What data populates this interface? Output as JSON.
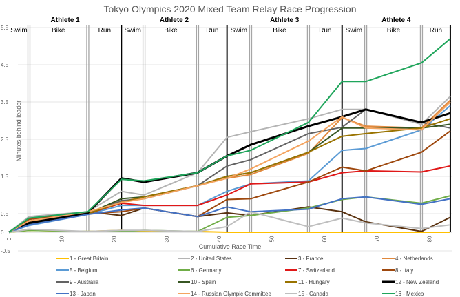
{
  "chart_data": {
    "type": "line",
    "title": "Tokyo Olympics 2020 Mixed Team Relay Race Progression",
    "xlabel": "Cumulative Race Time",
    "ylabel": "Minutes behind leader",
    "xlim": [
      0,
      85
    ],
    "ylim": [
      -0.5,
      5.5
    ],
    "xticks": [
      0,
      10,
      20,
      30,
      40,
      50,
      60,
      70,
      80
    ],
    "yticks": [
      -0.5,
      0,
      0.5,
      1.5,
      2.5,
      3.5,
      4.5,
      5.5
    ],
    "ytick_labels": [
      "-0.5",
      "0",
      "0.5",
      "1.5",
      "2.5",
      "3.5",
      "4.5",
      "5.5"
    ],
    "grid": true,
    "legend_position": "bottom",
    "x": [
      0,
      3.8,
      15.0,
      21.4,
      25.7,
      35.9,
      41.5,
      46.0,
      57.0,
      63.4,
      67.9,
      78.5,
      84.0
    ],
    "athletes": [
      {
        "label": "Athlete 1",
        "segments": [
          {
            "label": "Swim",
            "start": 0,
            "end": 3.8
          },
          {
            "label": "Bike",
            "start": 3.8,
            "end": 15.0
          },
          {
            "label": "Run",
            "start": 15.0,
            "end": 21.4
          }
        ]
      },
      {
        "label": "Athlete 2",
        "segments": [
          {
            "label": "Swim",
            "start": 21.4,
            "end": 25.7
          },
          {
            "label": "Bike",
            "start": 25.7,
            "end": 35.9
          },
          {
            "label": "Run",
            "start": 35.9,
            "end": 41.5
          }
        ]
      },
      {
        "label": "Athlete 3",
        "segments": [
          {
            "label": "Swim",
            "start": 41.5,
            "end": 46.0
          },
          {
            "label": "Bike",
            "start": 46.0,
            "end": 57.0
          },
          {
            "label": "Run",
            "start": 57.0,
            "end": 63.4
          }
        ]
      },
      {
        "label": "Athlete 4",
        "segments": [
          {
            "label": "Swim",
            "start": 63.4,
            "end": 67.9
          },
          {
            "label": "Bike",
            "start": 67.9,
            "end": 78.5
          },
          {
            "label": "Run",
            "start": 78.5,
            "end": 84.0
          }
        ]
      }
    ],
    "series": [
      {
        "name": "1 - Great Britain",
        "color": "#FFC000",
        "values": [
          0,
          0.05,
          0.02,
          0.05,
          0.02,
          0.02,
          0,
          0,
          0,
          0,
          0,
          0,
          0
        ]
      },
      {
        "name": "2 - United States",
        "color": "#B4B4B4",
        "values": [
          0,
          0.42,
          0.55,
          1.1,
          1.0,
          1.6,
          2.55,
          2.7,
          3.05,
          3.3,
          3.3,
          2.9,
          3.65
        ]
      },
      {
        "name": "3 - France",
        "color": "#5A3210",
        "values": [
          0,
          0.35,
          0.55,
          0.45,
          0.65,
          0.42,
          0.52,
          0.45,
          0.68,
          0.55,
          0.28,
          0.02,
          0.4
        ]
      },
      {
        "name": "4 - Netherlands",
        "color": "#E0883C",
        "values": [
          0,
          0.3,
          0.52,
          0.82,
          0.95,
          1.25,
          1.45,
          1.55,
          2.12,
          3.08,
          2.85,
          2.8,
          3.55
        ]
      },
      {
        "name": "5 - Belgium",
        "color": "#5B9BD5",
        "values": [
          0,
          0.18,
          0.48,
          0.72,
          0.72,
          0.72,
          1.1,
          1.3,
          1.38,
          2.2,
          2.25,
          2.75,
          3.4
        ]
      },
      {
        "name": "6 - Germany",
        "color": "#70AD47",
        "values": [
          0,
          0.05,
          0.02,
          0.02,
          0.05,
          0.02,
          0.4,
          0.45,
          0.65,
          0.88,
          0.95,
          0.78,
          0.98
        ]
      },
      {
        "name": "7 - Switzerland",
        "color": "#E01818",
        "values": [
          0,
          0.25,
          0.5,
          0.78,
          0.72,
          0.72,
          1.0,
          1.3,
          1.35,
          1.6,
          1.65,
          1.62,
          1.78
        ]
      },
      {
        "name": "8 - Italy",
        "color": "#9E480E",
        "values": [
          0,
          0.35,
          0.5,
          0.55,
          0.65,
          0.42,
          0.88,
          0.9,
          1.35,
          1.75,
          1.65,
          2.15,
          2.72
        ]
      },
      {
        "name": "9 - Australia",
        "color": "#636363",
        "values": [
          0,
          0.25,
          0.5,
          0.85,
          0.9,
          1.25,
          1.78,
          1.95,
          2.65,
          2.82,
          3.3,
          2.95,
          2.8
        ]
      },
      {
        "name": "10 - Spain",
        "color": "#375623",
        "values": [
          0,
          0.22,
          0.5,
          0.9,
          0.95,
          1.25,
          1.5,
          1.6,
          2.15,
          2.8,
          2.8,
          2.8,
          2.9
        ]
      },
      {
        "name": "11 - Hungary",
        "color": "#997300",
        "values": [
          0,
          0.3,
          0.5,
          0.8,
          0.95,
          1.25,
          1.5,
          1.6,
          2.15,
          2.58,
          2.65,
          2.8,
          3.05
        ]
      },
      {
        "name": "12 - New Zealand",
        "color": "#000000",
        "values": [
          0,
          0.25,
          0.52,
          1.45,
          1.35,
          1.6,
          2.05,
          2.35,
          2.85,
          3.1,
          3.3,
          2.95,
          3.2
        ]
      },
      {
        "name": "13 - Japan",
        "color": "#4472C4",
        "values": [
          0,
          0.2,
          0.48,
          0.6,
          0.65,
          0.42,
          0.68,
          0.55,
          0.62,
          0.9,
          0.95,
          0.75,
          0.9
        ]
      },
      {
        "name": "14 - Russian Olympic Committee",
        "color": "#F4A460",
        "values": [
          0,
          0.3,
          0.55,
          0.8,
          0.9,
          1.25,
          1.45,
          1.7,
          2.45,
          3.1,
          2.8,
          2.75,
          3.5
        ]
      },
      {
        "name": "15 - Canada",
        "color": "#BFBFBF",
        "values": [
          0,
          0.08,
          0.02,
          0.05,
          0.05,
          0.02,
          0.15,
          0.55,
          0.15,
          0.38,
          0.25,
          0.1,
          0.2
        ]
      },
      {
        "name": "16 - Mexico",
        "color": "#1FA55B",
        "values": [
          0,
          0.38,
          0.55,
          1.42,
          1.38,
          1.6,
          2.05,
          2.2,
          2.95,
          4.05,
          4.05,
          4.55,
          5.2
        ]
      }
    ]
  }
}
